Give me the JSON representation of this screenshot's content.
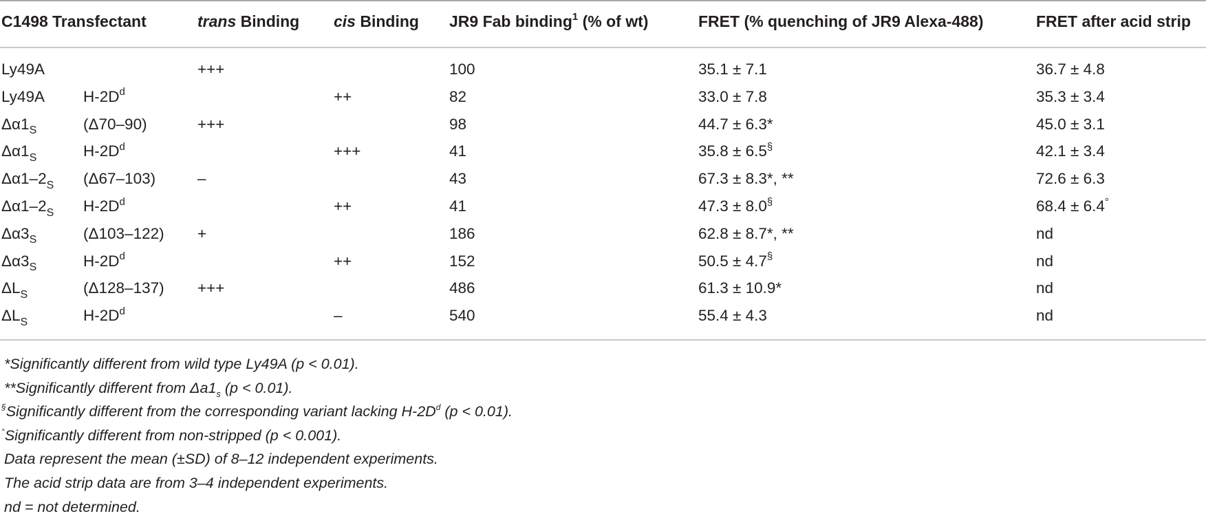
{
  "header": {
    "c1498": "C1498",
    "transfectant": "Transfectant",
    "trans_word": "trans",
    "trans_rest": " Binding",
    "cis_word": "cis",
    "cis_rest": " Binding",
    "jr9_main": "JR9 Fab binding",
    "jr9_sup": "1",
    "jr9_rest": " (% of wt)",
    "fret": "FRET (% quenching of JR9 Alexa-488)",
    "fret_acid": "FRET after acid strip"
  },
  "rows": [
    {
      "c1498": "Ly49A",
      "c1498_sub": "",
      "transfectant": "",
      "transfectant_sup": "",
      "trans": "+++",
      "cis": "",
      "jr9": "100",
      "fret": "35.1 ± 7.1",
      "fret_sup": "",
      "fret_acid": "36.7 ± 4.8",
      "fret_acid_sup": ""
    },
    {
      "c1498": "Ly49A",
      "c1498_sub": "",
      "transfectant": "H-2D",
      "transfectant_sup": "d",
      "trans": "",
      "cis": "++",
      "jr9": "82",
      "fret": "33.0 ± 7.8",
      "fret_sup": "",
      "fret_acid": "35.3 ± 3.4",
      "fret_acid_sup": ""
    },
    {
      "c1498": "Δα1",
      "c1498_sub": "S",
      "transfectant": "(Δ70–90)",
      "transfectant_sup": "",
      "trans": "+++",
      "cis": "",
      "jr9": "98",
      "fret": "44.7 ± 6.3*",
      "fret_sup": "",
      "fret_acid": "45.0 ± 3.1",
      "fret_acid_sup": ""
    },
    {
      "c1498": "Δα1",
      "c1498_sub": "S",
      "transfectant": "H-2D",
      "transfectant_sup": "d",
      "trans": "",
      "cis": "+++",
      "jr9": "41",
      "fret": "35.8 ± 6.5",
      "fret_sup": "§",
      "fret_acid": "42.1 ± 3.4",
      "fret_acid_sup": ""
    },
    {
      "c1498": "Δα1–2",
      "c1498_sub": "S",
      "transfectant": "(Δ67–103)",
      "transfectant_sup": "",
      "trans": "–",
      "cis": "",
      "jr9": "43",
      "fret": "67.3 ± 8.3*, **",
      "fret_sup": "",
      "fret_acid": "72.6 ± 6.3",
      "fret_acid_sup": ""
    },
    {
      "c1498": "Δα1–2",
      "c1498_sub": "S",
      "transfectant": "H-2D",
      "transfectant_sup": "d",
      "trans": "",
      "cis": "++",
      "jr9": "41",
      "fret": "47.3 ± 8.0",
      "fret_sup": "§",
      "fret_acid": "68.4 ± 6.4",
      "fret_acid_sup": "°"
    },
    {
      "c1498": "Δα3",
      "c1498_sub": "S",
      "transfectant": "(Δ103–122)",
      "transfectant_sup": "",
      "trans": "+",
      "cis": "",
      "jr9": "186",
      "fret": "62.8 ± 8.7*, **",
      "fret_sup": "",
      "fret_acid": "nd",
      "fret_acid_sup": ""
    },
    {
      "c1498": "Δα3",
      "c1498_sub": "S",
      "transfectant": "H-2D",
      "transfectant_sup": "d",
      "trans": "",
      "cis": "++",
      "jr9": "152",
      "fret": "50.5 ± 4.7",
      "fret_sup": "§",
      "fret_acid": "nd",
      "fret_acid_sup": ""
    },
    {
      "c1498": "ΔL",
      "c1498_sub": "S",
      "transfectant": "(Δ128–137)",
      "transfectant_sup": "",
      "trans": "+++",
      "cis": "",
      "jr9": "486",
      "fret": "61.3 ± 10.9*",
      "fret_sup": "",
      "fret_acid": "nd",
      "fret_acid_sup": ""
    },
    {
      "c1498": "ΔL",
      "c1498_sub": "S",
      "transfectant": "H-2D",
      "transfectant_sup": "d",
      "trans": "",
      "cis": "–",
      "jr9": "540",
      "fret": "55.4 ± 4.3",
      "fret_sup": "",
      "fret_acid": "nd",
      "fret_acid_sup": ""
    }
  ],
  "footnotes": [
    {
      "pre": "*Significantly different from wild type Ly49A (",
      "p": "p",
      "post": " < 0.01)."
    },
    {
      "pre": "**Significantly different from Δa1",
      "sub": "s",
      "mid": " (",
      "p": "p",
      "post": " < 0.01)."
    },
    {
      "sup": "§",
      "pre": "Significantly different from the corresponding variant lacking H-2D",
      "sup2": "d",
      "mid": " (",
      "p": "p",
      "post": " < 0.01)."
    },
    {
      "sup": "°",
      "pre": "Significantly different from non-stripped (",
      "p": "p",
      "post": " < 0.001)."
    },
    {
      "pre": "Data represent the mean (±SD) of 8–12 independent experiments."
    },
    {
      "pre": "The acid strip data are from 3–4 independent experiments."
    },
    {
      "pre": "nd = not determined."
    }
  ]
}
